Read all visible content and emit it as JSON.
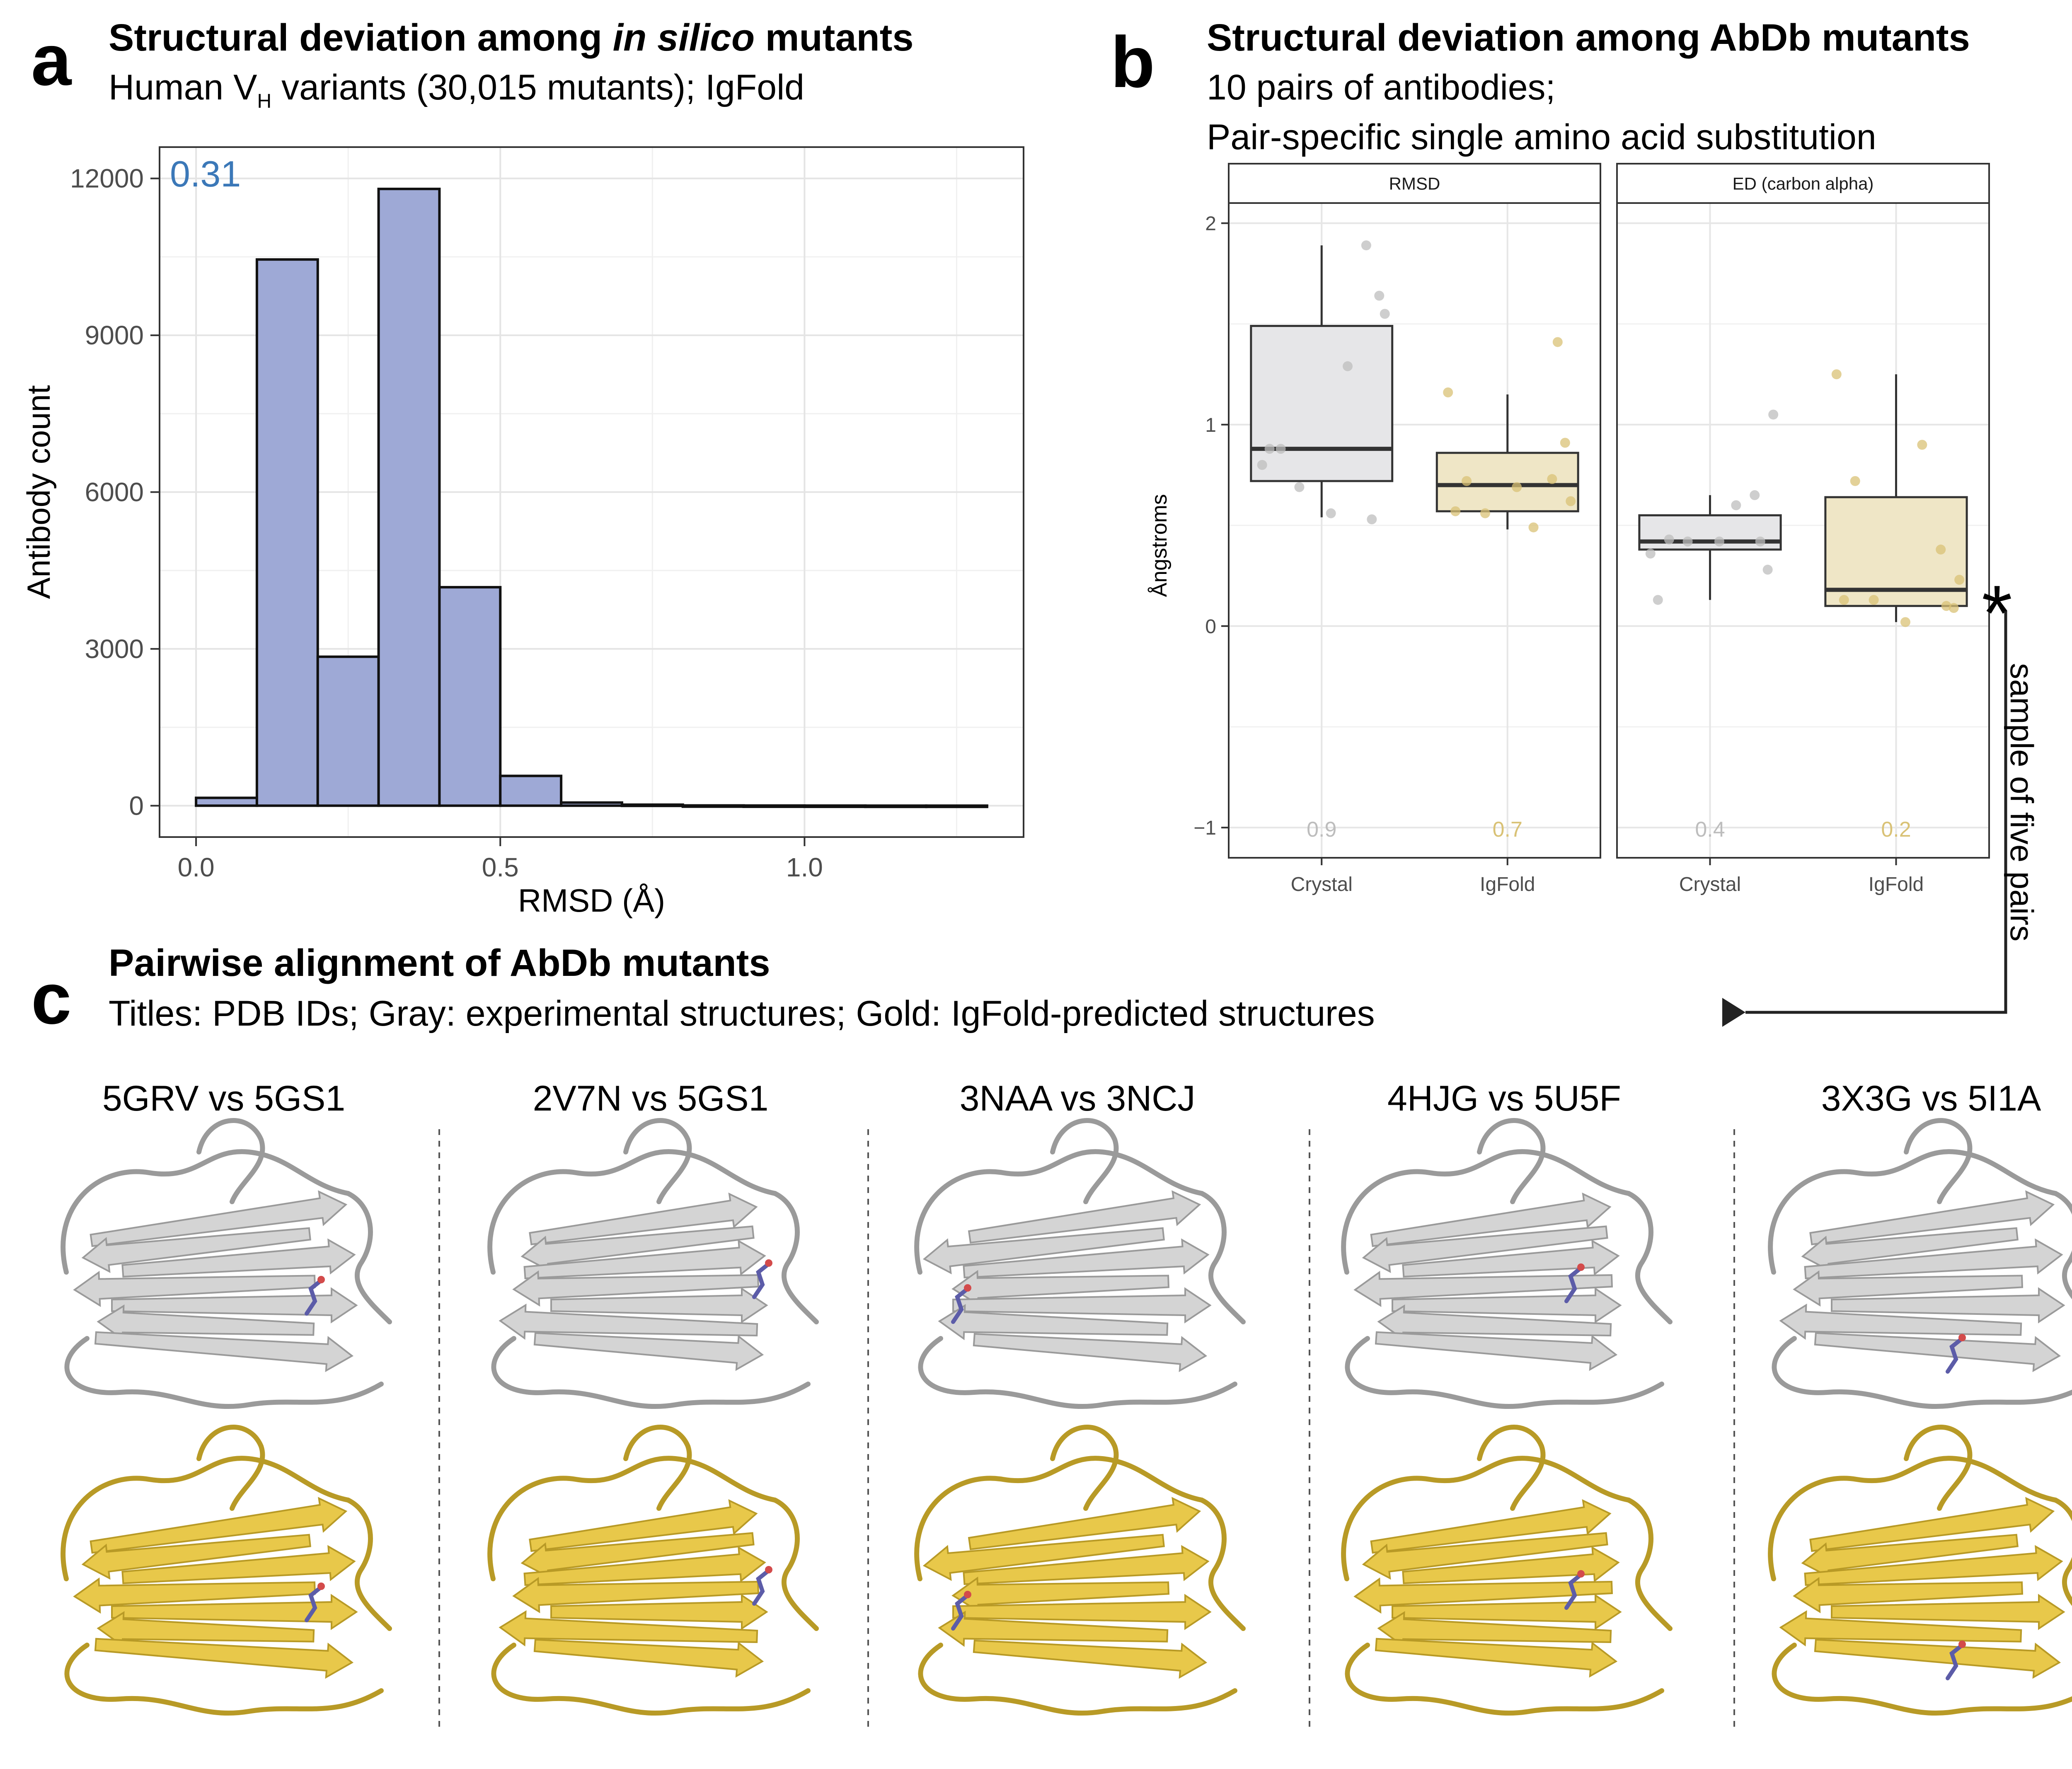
{
  "panel_a": {
    "letter": "a",
    "title_prefix": "Structural deviation among ",
    "title_italic": "in silico",
    "title_suffix": " mutants",
    "subtitle_pre": "Human V",
    "subtitle_sub": "H",
    "subtitle_post": " variants (30,015 mutants); IgFold"
  },
  "panel_b": {
    "letter": "b",
    "title": "Structural deviation among AbDb mutants",
    "subtitle_line1": "10 pairs of antibodies;",
    "subtitle_line2": "Pair-specific single amino acid substitution",
    "star": "*",
    "arrow_label": "sample of five pairs"
  },
  "panel_c": {
    "letter": "c",
    "title": "Pairwise alignment of AbDb mutants",
    "subtitle": "Titles: PDB IDs; Gray: experimental structures; Gold: IgFold-predicted structures",
    "pairs": [
      "5GRV vs 5GS1",
      "2V7N vs 5GS1",
      "3NAA vs 3NCJ",
      "4HJG vs 5U5F",
      "3X3G vs 5I1A"
    ],
    "colors": {
      "experimental": "#c8c8c8",
      "predicted": "#e8c84a",
      "mutated_residue": "#5c5ca8"
    }
  },
  "chart_data": [
    {
      "type": "bar",
      "subtype": "histogram",
      "xlabel": "RMSD (Å)",
      "ylabel": "Antibody count",
      "annotation": "0.31",
      "annotation_color": "#3b78b8",
      "bar_color": "#9ea9d6",
      "bins": [
        {
          "x0": 0.0,
          "x1": 0.1,
          "count": 150
        },
        {
          "x0": 0.1,
          "x1": 0.2,
          "count": 10450
        },
        {
          "x0": 0.2,
          "x1": 0.3,
          "count": 2850
        },
        {
          "x0": 0.3,
          "x1": 0.4,
          "count": 11800
        },
        {
          "x0": 0.4,
          "x1": 0.5,
          "count": 4180
        },
        {
          "x0": 0.5,
          "x1": 0.6,
          "count": 570
        },
        {
          "x0": 0.6,
          "x1": 0.7,
          "count": 60
        },
        {
          "x0": 0.7,
          "x1": 0.8,
          "count": 20
        },
        {
          "x0": 0.8,
          "x1": 0.9,
          "count": 5
        },
        {
          "x0": 0.9,
          "x1": 1.0,
          "count": 3
        },
        {
          "x0": 1.0,
          "x1": 1.1,
          "count": 2
        },
        {
          "x0": 1.1,
          "x1": 1.2,
          "count": 1
        },
        {
          "x0": 1.2,
          "x1": 1.3,
          "count": 1
        }
      ],
      "xticks": [
        0.0,
        0.5,
        1.0
      ],
      "xtick_labels": [
        "0.0",
        "0.5",
        "1.0"
      ],
      "yticks": [
        0,
        3000,
        6000,
        9000,
        12000
      ],
      "ytick_labels": [
        "0",
        "3000",
        "6000",
        "9000",
        "12000"
      ],
      "xlim": [
        -0.06,
        1.36
      ],
      "ylim": [
        -600,
        12600
      ],
      "grid": true
    },
    {
      "type": "box",
      "ylabel": "Ångstroms",
      "ylim": [
        -1.15,
        2.1
      ],
      "yticks": [
        -1,
        0,
        1,
        2
      ],
      "ytick_labels": [
        "−1",
        "0",
        "1",
        "2"
      ],
      "categories": [
        "Crystal",
        "IgFold"
      ],
      "category_colors": {
        "Crystal": "#bdbdbd",
        "IgFold": "#d9c276"
      },
      "box_fills": {
        "Crystal": "#e6e6e8",
        "IgFold": "#efe6c6"
      },
      "grid": true,
      "facets": [
        {
          "name": "RMSD",
          "groups": [
            {
              "category": "Crystal",
              "whisker_low": 0.54,
              "q1": 0.72,
              "median": 0.88,
              "q3": 1.49,
              "whisker_high": 1.89,
              "label": "0.9",
              "points": [
                0.8,
                0.88,
                0.88,
                0.69,
                0.56,
                1.29,
                1.89,
                1.64,
                1.55,
                0.53
              ]
            },
            {
              "category": "IgFold",
              "whisker_low": 0.48,
              "q1": 0.57,
              "median": 0.7,
              "q3": 0.86,
              "whisker_high": 1.15,
              "label": "0.7",
              "points": [
                1.16,
                0.72,
                0.57,
                0.56,
                0.69,
                0.49,
                0.73,
                0.91,
                0.62,
                1.41
              ]
            }
          ]
        },
        {
          "name": "ED (carbon alpha)",
          "groups": [
            {
              "category": "Crystal",
              "whisker_low": 0.13,
              "q1": 0.38,
              "median": 0.42,
              "q3": 0.55,
              "whisker_high": 0.65,
              "label": "0.4",
              "points": [
                0.36,
                0.43,
                0.13,
                0.42,
                0.42,
                0.6,
                0.65,
                0.28,
                1.05,
                0.42
              ]
            },
            {
              "category": "IgFold",
              "whisker_low": 0.02,
              "q1": 0.1,
              "median": 0.18,
              "q3": 0.64,
              "whisker_high": 1.25,
              "label": "0.2",
              "points": [
                1.25,
                0.72,
                0.13,
                0.13,
                0.02,
                0.9,
                0.38,
                0.09,
                0.23,
                0.1
              ]
            }
          ]
        }
      ]
    }
  ]
}
